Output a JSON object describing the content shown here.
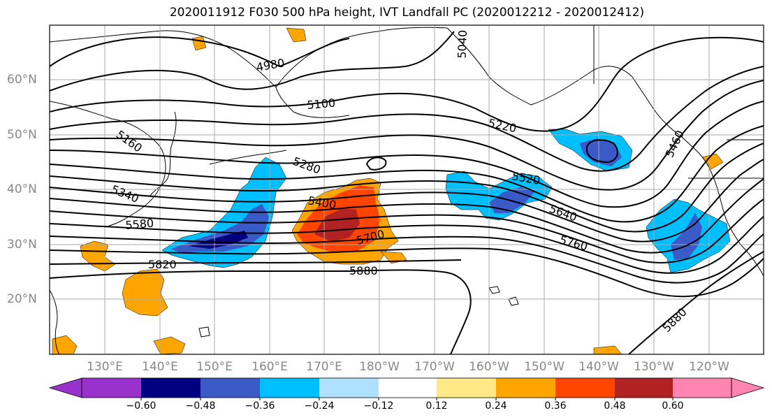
{
  "title": "2020011912 F030 500 hPa height, IVT Landfall PC (2020012212 - 2020012412)",
  "map": {
    "lat_labels": [
      "60°N",
      "50°N",
      "40°N",
      "30°N",
      "20°N"
    ],
    "lon_labels": [
      "130°E",
      "140°E",
      "150°E",
      "160°E",
      "170°E",
      "180°W",
      "170°W",
      "160°W",
      "150°W",
      "140°W",
      "130°W",
      "120°W"
    ],
    "contour_labels": [
      "4980",
      "5040",
      "5100",
      "5160",
      "5220",
      "5280",
      "5340",
      "5400",
      "5460",
      "5520",
      "5580",
      "5640",
      "5700",
      "5760",
      "5820",
      "5880",
      "5880"
    ]
  },
  "colorbar": {
    "ticks": [
      "−0.60",
      "−0.48",
      "−0.36",
      "−0.24",
      "−0.12",
      "0.12",
      "0.24",
      "0.36",
      "0.48",
      "0.60"
    ],
    "colors": [
      "#9932cc",
      "#000080",
      "#3a5bc7",
      "#00bfff",
      "#b0e0ff",
      "#ffffff",
      "#ffe987",
      "#ffa500",
      "#ff4500",
      "#b22222",
      "#ff85b0",
      "#ff85b0"
    ]
  }
}
